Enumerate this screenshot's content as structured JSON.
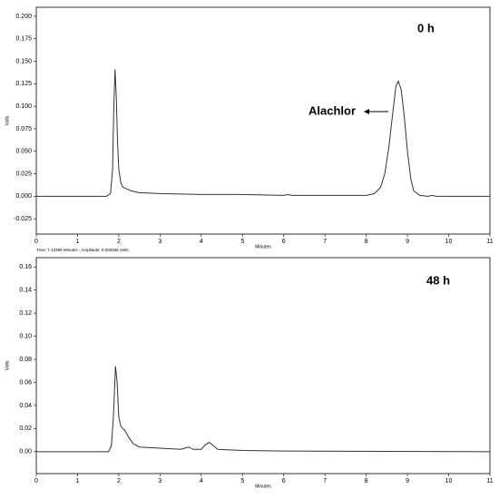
{
  "chart_data": [
    {
      "type": "line",
      "xlabel": "Minutes",
      "ylabel": "Volts",
      "annotations": [
        "0 h",
        "Alachlor"
      ],
      "x": [
        0,
        1.7,
        1.8,
        1.85,
        1.88,
        1.91,
        1.94,
        1.97,
        2.0,
        2.05,
        2.1,
        2.2,
        2.3,
        2.5,
        3,
        4,
        5,
        6,
        6.1,
        6.2,
        7,
        8,
        8.2,
        8.35,
        8.45,
        8.55,
        8.65,
        8.72,
        8.78,
        8.85,
        8.92,
        9.0,
        9.08,
        9.15,
        9.3,
        9.5,
        9.6,
        9.7,
        11
      ],
      "series": [
        {
          "color": "#333333",
          "values": [
            0,
            0,
            0.003,
            0.03,
            0.1,
            0.141,
            0.11,
            0.06,
            0.03,
            0.015,
            0.01,
            0.008,
            0.006,
            0.004,
            0.003,
            0.002,
            0.002,
            0.001,
            0.002,
            0.001,
            0.001,
            0.001,
            0.003,
            0.01,
            0.025,
            0.055,
            0.095,
            0.122,
            0.128,
            0.118,
            0.09,
            0.05,
            0.02,
            0.006,
            0.001,
            0,
            0.001,
            0,
            0
          ]
        }
      ],
      "xlim": [
        0,
        11
      ],
      "xticks": [
        0,
        1,
        2,
        3,
        4,
        5,
        6,
        7,
        8,
        9,
        10,
        11
      ],
      "ylim": [
        -0.042,
        0.21
      ],
      "yticks": [
        {
          "value": 0.2,
          "label": "0.200"
        },
        0.175,
        {
          "value": 0.15,
          "label": "0.150"
        },
        0.125,
        {
          "value": 0.1,
          "label": "0.100"
        },
        0.075,
        {
          "value": 0.05,
          "label": "0.050"
        },
        0.025,
        {
          "value": 0,
          "label": "0.000"
        },
        -0.025
      ]
    },
    {
      "type": "line",
      "xlabel": "Minutes",
      "ylabel": "Volts",
      "annotations": [
        "48 h"
      ],
      "status": "Time: 7.13399 Minutes - Amplitude: 0.000286 Volts",
      "x": [
        0,
        1.75,
        1.82,
        1.87,
        1.92,
        1.96,
        2.0,
        2.05,
        2.15,
        2.25,
        2.35,
        2.5,
        3.0,
        3.5,
        3.6,
        3.7,
        3.8,
        4.0,
        4.1,
        4.2,
        4.3,
        4.4,
        5,
        6,
        11
      ],
      "series": [
        {
          "color": "#333333",
          "values": [
            0,
            0,
            0.005,
            0.03,
            0.074,
            0.06,
            0.03,
            0.022,
            0.018,
            0.012,
            0.007,
            0.004,
            0.003,
            0.002,
            0.003,
            0.004,
            0.002,
            0.002,
            0.006,
            0.008,
            0.005,
            0.002,
            0.001,
            0.0005,
            0
          ]
        }
      ],
      "xlim": [
        0,
        11
      ],
      "xticks": [
        0,
        1,
        2,
        3,
        4,
        5,
        6,
        7,
        8,
        9,
        10,
        11
      ],
      "ylim": [
        -0.019,
        0.168
      ],
      "yticks": [
        0.16,
        0.14,
        0.12,
        {
          "value": 0.1,
          "label": "0.10"
        },
        0.08,
        0.06,
        0.04,
        0.02,
        {
          "value": 0,
          "label": "0.00"
        }
      ]
    }
  ]
}
